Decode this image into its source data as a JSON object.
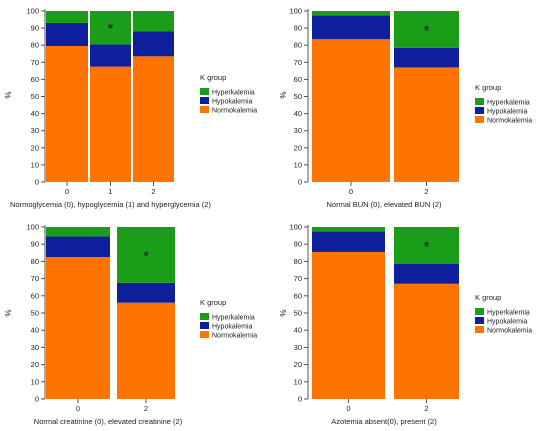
{
  "legend_colors": {
    "Hyperkalemia": "#1a9e1a",
    "Hypokalemia": "#0d1f9a",
    "Normokalemia": "#ff7300"
  },
  "chart_data": [
    {
      "type": "bar",
      "stacked": true,
      "categories": [
        "0",
        "1",
        "2"
      ],
      "xlabel": "Normoglycemia (0), hypoglycemia (1) and hyperglycemia (2)",
      "ylabel": "%",
      "ylim": [
        0,
        100
      ],
      "yticks": [
        0,
        10,
        20,
        30,
        40,
        50,
        60,
        70,
        80,
        90,
        100
      ],
      "legend_title": "K group",
      "legend_position": "right",
      "series": [
        {
          "name": "Normokalemia",
          "values": [
            79.5,
            67.5,
            73.5
          ]
        },
        {
          "name": "Hypokalemia",
          "values": [
            13.5,
            13,
            14.5
          ]
        },
        {
          "name": "Hyperkalemia",
          "values": [
            7,
            19.5,
            12
          ]
        }
      ],
      "annotations": [
        {
          "category": "1",
          "text": "*"
        }
      ]
    },
    {
      "type": "bar",
      "stacked": true,
      "categories": [
        "0",
        "2"
      ],
      "xlabel": "Normal BUN (0), elevated BUN (2)",
      "ylabel": "%",
      "ylim": [
        0,
        100
      ],
      "yticks": [
        0,
        10,
        20,
        30,
        40,
        50,
        60,
        70,
        80,
        90,
        100
      ],
      "legend_title": "K group",
      "legend_position": "right",
      "series": [
        {
          "name": "Normokalemia",
          "values": [
            83.5,
            67
          ]
        },
        {
          "name": "Hypokalemia",
          "values": [
            14,
            11.5
          ]
        },
        {
          "name": "Hyperkalemia",
          "values": [
            2.5,
            21.5
          ]
        }
      ],
      "annotations": [
        {
          "category": "2",
          "text": "*"
        }
      ]
    },
    {
      "type": "bar",
      "stacked": true,
      "categories": [
        "0",
        "2"
      ],
      "xlabel": "Normal creatinine (0),  elevated creatinine (2)",
      "ylabel": "%",
      "ylim": [
        0,
        100
      ],
      "yticks": [
        0,
        10,
        20,
        30,
        40,
        50,
        60,
        70,
        80,
        90,
        100
      ],
      "legend_title": "K group",
      "legend_position": "right",
      "series": [
        {
          "name": "Normokalemia",
          "values": [
            82.5,
            56
          ]
        },
        {
          "name": "Hypokalemia",
          "values": [
            12,
            11.5
          ]
        },
        {
          "name": "Hyperkalemia",
          "values": [
            5.5,
            32.5
          ]
        }
      ],
      "annotations": [
        {
          "category": "2",
          "text": "*"
        }
      ]
    },
    {
      "type": "bar",
      "stacked": true,
      "categories": [
        "0",
        "2"
      ],
      "xlabel": "Azotemia absent(0), present (2)",
      "ylabel": "%",
      "ylim": [
        0,
        100
      ],
      "yticks": [
        0,
        10,
        20,
        30,
        40,
        50,
        60,
        70,
        80,
        90,
        100
      ],
      "legend_title": "K group",
      "legend_position": "right",
      "series": [
        {
          "name": "Normokalemia",
          "values": [
            85.5,
            67
          ]
        },
        {
          "name": "Hypokalemia",
          "values": [
            12,
            11.5
          ]
        },
        {
          "name": "Hyperkalemia",
          "values": [
            2.5,
            21.5
          ]
        }
      ],
      "annotations": [
        {
          "category": "2",
          "text": "*"
        }
      ]
    }
  ]
}
